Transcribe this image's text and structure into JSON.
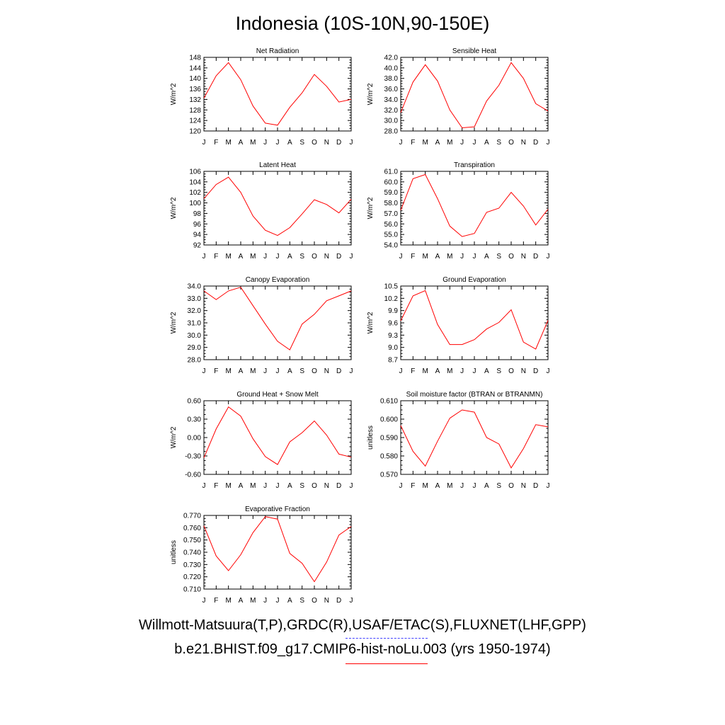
{
  "title": "Indonesia (10S-10N,90-150E)",
  "legend": {
    "observations": "Willmott-Matsuura(T,P),GRDC(R),USAF/ETAC(S),FLUXNET(LHF,GPP)",
    "model": "b.e21.BHIST.f09_g17.CMIP6-hist-noLu.003 (yrs 1950-1974)",
    "observations_color": "#4040ff",
    "model_color": "#ff0000"
  },
  "chart_data": [
    {
      "type": "line",
      "title": "Net Radiation",
      "ylabel": "W/m^2",
      "categories": [
        "J",
        "F",
        "M",
        "A",
        "M",
        "J",
        "J",
        "A",
        "S",
        "O",
        "N",
        "D",
        "J"
      ],
      "ylim": [
        120,
        148
      ],
      "yticks": [
        "120",
        "124",
        "128",
        "132",
        "136",
        "140",
        "144",
        "148"
      ],
      "series": [
        {
          "values": [
            132.5,
            141.0,
            146.0,
            139.5,
            129.5,
            123.0,
            122.2,
            129.0,
            134.5,
            141.5,
            137.0,
            131.0,
            132.0
          ]
        }
      ]
    },
    {
      "type": "line",
      "title": "Sensible Heat",
      "ylabel": "W/m^2",
      "categories": [
        "J",
        "F",
        "M",
        "A",
        "M",
        "J",
        "J",
        "A",
        "S",
        "O",
        "N",
        "D",
        "J"
      ],
      "ylim": [
        28.0,
        42.0
      ],
      "yticks": [
        "28.0",
        "30.0",
        "32.0",
        "34.0",
        "36.0",
        "38.0",
        "40.0",
        "42.0"
      ],
      "series": [
        {
          "values": [
            31.5,
            37.3,
            40.6,
            37.5,
            32.0,
            28.6,
            28.8,
            33.7,
            36.7,
            41.0,
            38.0,
            33.2,
            31.8
          ]
        }
      ]
    },
    {
      "type": "line",
      "title": "Latent Heat",
      "ylabel": "W/m^2",
      "categories": [
        "J",
        "F",
        "M",
        "A",
        "M",
        "J",
        "J",
        "A",
        "S",
        "O",
        "N",
        "D",
        "J"
      ],
      "ylim": [
        92,
        106
      ],
      "yticks": [
        "92",
        "94",
        "96",
        "98",
        "100",
        "102",
        "104",
        "106"
      ],
      "series": [
        {
          "values": [
            100.8,
            103.5,
            104.9,
            102.0,
            97.5,
            94.8,
            93.8,
            95.3,
            97.9,
            100.6,
            99.7,
            98.1,
            100.7
          ]
        }
      ]
    },
    {
      "type": "line",
      "title": "Transpiration",
      "ylabel": "W/m^2",
      "categories": [
        "J",
        "F",
        "M",
        "A",
        "M",
        "J",
        "J",
        "A",
        "S",
        "O",
        "N",
        "D",
        "J"
      ],
      "ylim": [
        54.0,
        61.0
      ],
      "yticks": [
        "54.0",
        "55.0",
        "56.0",
        "57.0",
        "58.0",
        "59.0",
        "60.0",
        "61.0"
      ],
      "series": [
        {
          "values": [
            57.3,
            60.3,
            60.7,
            58.4,
            55.8,
            54.8,
            55.1,
            57.1,
            57.5,
            59.0,
            57.7,
            55.9,
            57.4
          ]
        }
      ]
    },
    {
      "type": "line",
      "title": "Canopy Evaporation",
      "ylabel": "W/m^2",
      "categories": [
        "J",
        "F",
        "M",
        "A",
        "M",
        "J",
        "J",
        "A",
        "S",
        "O",
        "N",
        "D",
        "J"
      ],
      "ylim": [
        28.0,
        34.0
      ],
      "yticks": [
        "28.0",
        "29.0",
        "30.0",
        "31.0",
        "32.0",
        "33.0",
        "34.0"
      ],
      "series": [
        {
          "values": [
            33.6,
            32.9,
            33.6,
            33.9,
            32.4,
            30.9,
            29.5,
            28.8,
            30.9,
            31.7,
            32.8,
            33.2,
            33.6
          ]
        }
      ]
    },
    {
      "type": "line",
      "title": "Ground Evaporation",
      "ylabel": "W/m^2",
      "categories": [
        "J",
        "F",
        "M",
        "A",
        "M",
        "J",
        "J",
        "A",
        "S",
        "O",
        "N",
        "D",
        "J"
      ],
      "ylim": [
        8.7,
        10.5
      ],
      "yticks": [
        "8.7",
        "9.0",
        "9.3",
        "9.6",
        "9.9",
        "10.2",
        "10.5"
      ],
      "series": [
        {
          "values": [
            9.65,
            10.26,
            10.39,
            9.56,
            9.07,
            9.07,
            9.19,
            9.45,
            9.61,
            9.92,
            9.13,
            8.96,
            9.66
          ]
        }
      ]
    },
    {
      "type": "line",
      "title": "Ground Heat + Snow Melt",
      "ylabel": "W/m^2",
      "categories": [
        "J",
        "F",
        "M",
        "A",
        "M",
        "J",
        "J",
        "A",
        "S",
        "O",
        "N",
        "D",
        "J"
      ],
      "ylim": [
        -0.6,
        0.6
      ],
      "yticks": [
        "-0.60",
        "-0.30",
        "0.00",
        "0.30",
        "0.60"
      ],
      "series": [
        {
          "values": [
            -0.33,
            0.14,
            0.5,
            0.35,
            -0.02,
            -0.31,
            -0.44,
            -0.07,
            0.08,
            0.27,
            0.04,
            -0.27,
            -0.32
          ]
        }
      ]
    },
    {
      "type": "line",
      "title": "Soil moisture factor (BTRAN or BTRANMN)",
      "ylabel": "unitless",
      "categories": [
        "J",
        "F",
        "M",
        "A",
        "M",
        "J",
        "J",
        "A",
        "S",
        "O",
        "N",
        "D",
        "J"
      ],
      "ylim": [
        0.57,
        0.61
      ],
      "yticks": [
        "0.570",
        "0.580",
        "0.590",
        "0.600",
        "0.610"
      ],
      "series": [
        {
          "values": [
            0.5965,
            0.5825,
            0.5745,
            0.588,
            0.6005,
            0.605,
            0.6038,
            0.59,
            0.5865,
            0.5735,
            0.584,
            0.597,
            0.5958
          ]
        }
      ]
    },
    {
      "type": "line",
      "title": "Evaporative Fraction",
      "ylabel": "unitless",
      "categories": [
        "J",
        "F",
        "M",
        "A",
        "M",
        "J",
        "J",
        "A",
        "S",
        "O",
        "N",
        "D",
        "J"
      ],
      "ylim": [
        0.71,
        0.77
      ],
      "yticks": [
        "0.710",
        "0.720",
        "0.730",
        "0.740",
        "0.750",
        "0.760",
        "0.770"
      ],
      "series": [
        {
          "values": [
            0.7615,
            0.737,
            0.725,
            0.738,
            0.756,
            0.769,
            0.767,
            0.739,
            0.731,
            0.716,
            0.732,
            0.754,
            0.761
          ]
        }
      ]
    }
  ]
}
